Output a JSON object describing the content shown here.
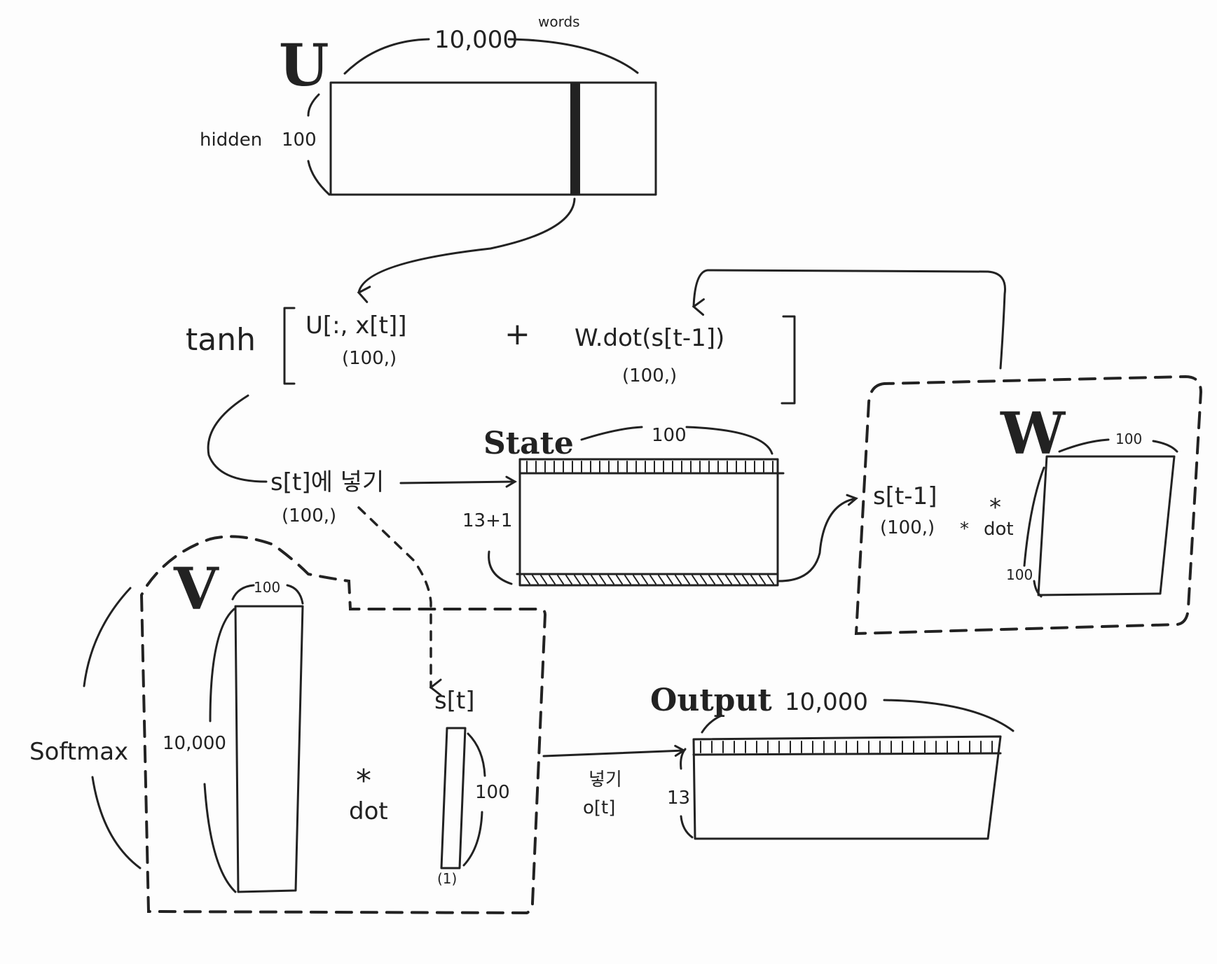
{
  "matrix_u": {
    "letter": "U",
    "width_label": "10,000",
    "words_label": "words",
    "height_label": "100",
    "hidden_label": "hidden"
  },
  "formula": {
    "tanh": "tanh",
    "term1": "U[:, x[t]]",
    "term1_shape": "(100,)",
    "plus": "+",
    "term2": "W.dot(s[t-1])",
    "term2_shape": "(100,)"
  },
  "store": {
    "label": "s[t]에 넣기",
    "shape": "(100,)"
  },
  "state": {
    "title": "State",
    "width_label": "100",
    "height_label": "13+1"
  },
  "matrix_w": {
    "letter": "W",
    "width_label": "100",
    "height_label": "100",
    "input_label": "s[t-1]",
    "input_shape": "(100,)",
    "star": "*",
    "dot": "dot",
    "op_star": "*",
    "op_dot": "dot"
  },
  "matrix_v": {
    "letter": "V",
    "width_label": "100",
    "height_label": "10,000",
    "softmax_label": "Softmax",
    "star": "*",
    "dot": "dot",
    "vector_label": "s[t]",
    "vector_height": "100",
    "vector_width": "(1)"
  },
  "output": {
    "title": "Output",
    "width_label": "10,000",
    "height_label": "13",
    "store_label": "넣기",
    "store_target": "o[t]"
  }
}
